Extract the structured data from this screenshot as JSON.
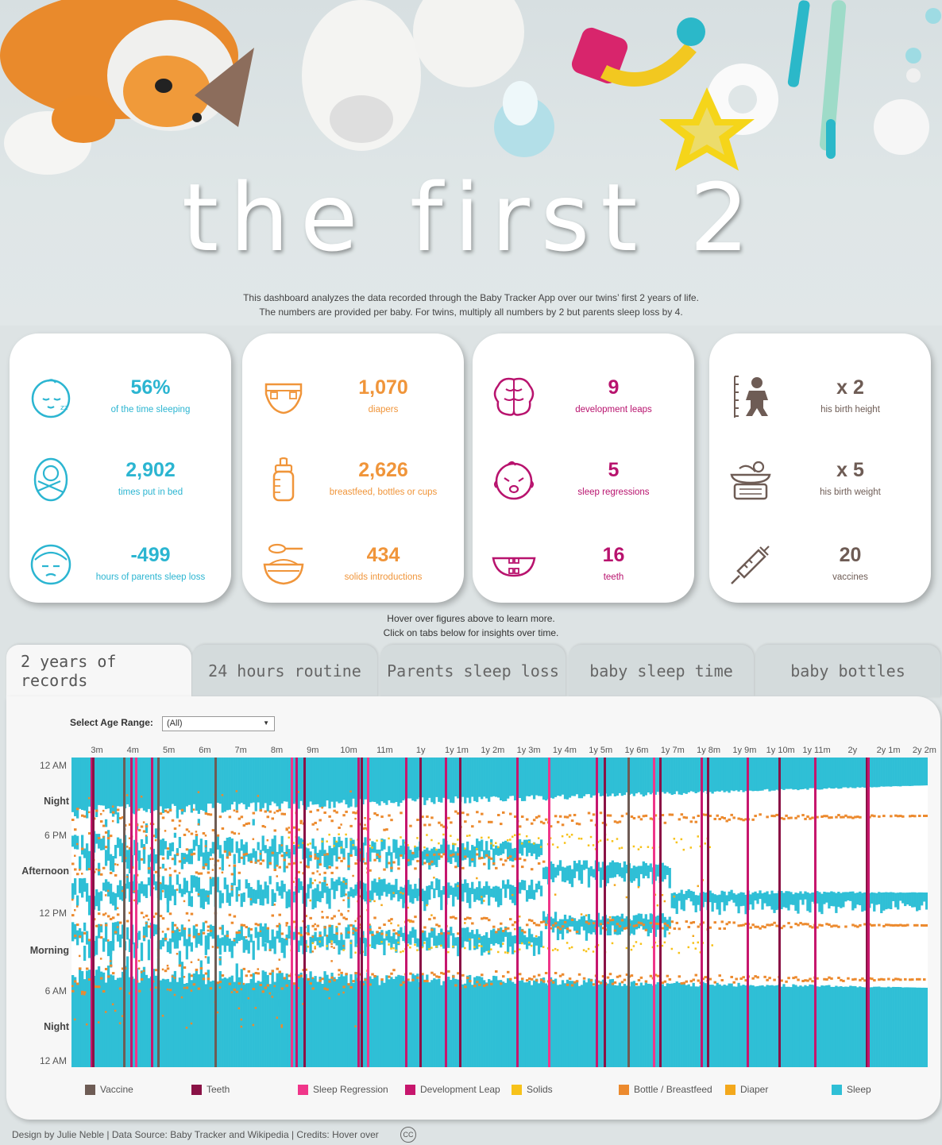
{
  "hero": {
    "title": "the first 2",
    "desc_line1": "This dashboard analyzes the data recorded through the Baby Tracker App over our twins’ first 2 years of life.",
    "desc_line2": "The numbers are provided per baby. For twins, multiply all numbers by 2 but parents sleep loss by 4."
  },
  "colors": {
    "teal": "#2bb5d1",
    "orange": "#f0953a",
    "magenta": "#b8136e",
    "brown": "#6e5c55",
    "vaccine": "#6e5c55",
    "teeth": "#8a1246",
    "sleep_regression": "#f0368a",
    "development_leap": "#c7166d",
    "solids": "#f7c21a",
    "bottle": "#ec8a2e",
    "diaper": "#f3a81c",
    "sleep": "#2fbfd6"
  },
  "kpis": {
    "sleep": [
      {
        "icon": "sleeping-face-icon",
        "value": "56%",
        "label": "of the time sleeping"
      },
      {
        "icon": "swaddled-baby-icon",
        "value": "2,902",
        "label": "times put in bed"
      },
      {
        "icon": "tired-parent-icon",
        "value": "-499",
        "label": "hours of parents sleep loss"
      }
    ],
    "feeding": [
      {
        "icon": "diaper-icon",
        "value": "1,070",
        "label": "diapers"
      },
      {
        "icon": "baby-bottle-icon",
        "value": "2,626",
        "label": "breastfeed, bottles or cups"
      },
      {
        "icon": "bowl-spoon-icon",
        "value": "434",
        "label": "solids introductions"
      }
    ],
    "development": [
      {
        "icon": "brain-icon",
        "value": "9",
        "label": "development leaps"
      },
      {
        "icon": "crying-baby-icon",
        "value": "5",
        "label": "sleep regressions"
      },
      {
        "icon": "teeth-icon",
        "value": "16",
        "label": "teeth"
      }
    ],
    "growth": [
      {
        "icon": "height-ruler-icon",
        "value": "x 2",
        "label": "his birth height"
      },
      {
        "icon": "baby-scale-icon",
        "value": "x 5",
        "label": "his birth weight"
      },
      {
        "icon": "syringe-icon",
        "value": "20",
        "label": "vaccines"
      }
    ]
  },
  "hint": {
    "line1": "Hover over figures above to learn more.",
    "line2": "Click on tabs below for insights over time."
  },
  "tabs": [
    "2 years of records",
    "24 hours routine",
    "Parents sleep loss",
    "baby sleep time",
    "baby bottles"
  ],
  "filter": {
    "label": "Select Age Range:",
    "value": "(All)"
  },
  "chart_data": {
    "type": "heatmap",
    "x_tick_labels": [
      "3m",
      "4m",
      "5m",
      "6m",
      "7m",
      "8m",
      "9m",
      "10m",
      "11m",
      "1y",
      "1y 1m",
      "1y 2m",
      "1y 3m",
      "1y 4m",
      "1y 5m",
      "1y 6m",
      "1y 7m",
      "1y 8m",
      "1y 9m",
      "1y 10m",
      "1y 11m",
      "2y",
      "2y 1m",
      "2y 2m"
    ],
    "y_tick_labels": {
      "times": [
        "12 AM",
        "6 PM",
        "12 PM",
        "6 AM",
        "12 AM"
      ],
      "periods": [
        "Night",
        "Afternoon",
        "Morning",
        "Night"
      ]
    },
    "series": [
      {
        "name": "Vaccine"
      },
      {
        "name": "Teeth"
      },
      {
        "name": "Sleep Regression"
      },
      {
        "name": "Development Leap"
      },
      {
        "name": "Solids"
      },
      {
        "name": "Bottle / Breastfeed"
      },
      {
        "name": "Diaper"
      },
      {
        "name": "Sleep"
      }
    ]
  },
  "footer": {
    "text": "Design by Julie Neble | Data Source: Baby Tracker and Wikipedia | Credits: Hover over",
    "cc": "CC"
  }
}
